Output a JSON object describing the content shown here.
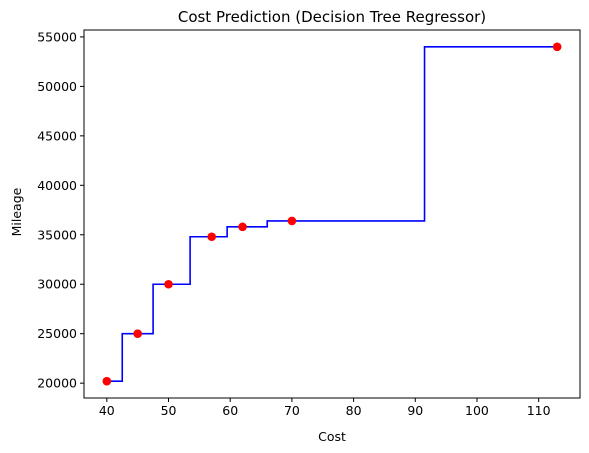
{
  "chart_data": {
    "type": "line",
    "title": "Cost Prediction (Decision Tree Regressor)",
    "xlabel": "Cost",
    "ylabel": "Mileage",
    "xlim": [
      36.3,
      116.7
    ],
    "ylim": [
      18500,
      55700
    ],
    "xticks": [
      40,
      50,
      60,
      70,
      80,
      90,
      100,
      110
    ],
    "yticks": [
      20000,
      25000,
      30000,
      35000,
      40000,
      45000,
      50000,
      55000
    ],
    "grid": false,
    "series": [
      {
        "kind": "step-line",
        "color": "#0000ff",
        "points": [
          [
            40,
            20200
          ],
          [
            42.5,
            20200
          ],
          [
            42.5,
            25000
          ],
          [
            47.5,
            25000
          ],
          [
            47.5,
            30000
          ],
          [
            53.5,
            30000
          ],
          [
            53.5,
            34800
          ],
          [
            59.5,
            34800
          ],
          [
            59.5,
            35800
          ],
          [
            66,
            35800
          ],
          [
            66,
            36400
          ],
          [
            91.5,
            36400
          ],
          [
            91.5,
            54000
          ],
          [
            113,
            54000
          ]
        ]
      },
      {
        "kind": "scatter",
        "color": "#ff0000",
        "points": [
          [
            40,
            20200
          ],
          [
            45,
            25000
          ],
          [
            50,
            30000
          ],
          [
            57,
            34800
          ],
          [
            62,
            35800
          ],
          [
            70,
            36400
          ],
          [
            113,
            54000
          ]
        ]
      }
    ]
  }
}
